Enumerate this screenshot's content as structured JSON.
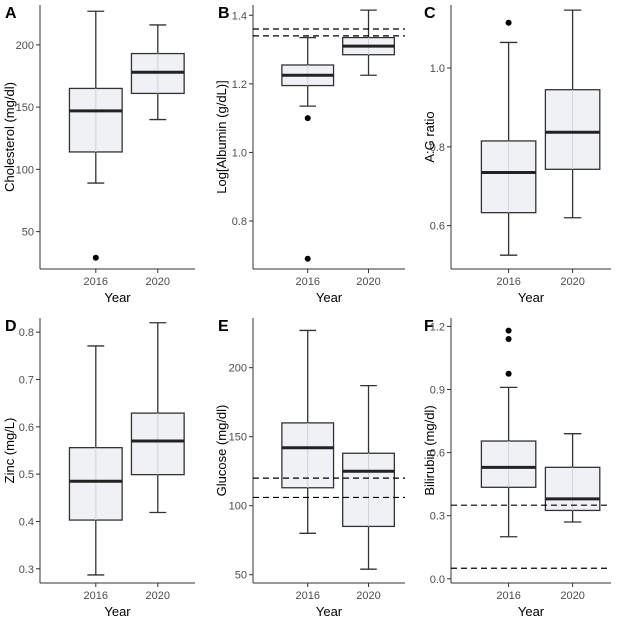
{
  "chart_data": [
    {
      "panel": "A",
      "type": "box",
      "xlabel": "Year",
      "ylabel": "Cholesterol (mg/dl)",
      "ylim": [
        20,
        232
      ],
      "yticks": [
        50,
        100,
        150,
        200
      ],
      "categories": [
        "2016",
        "2020"
      ],
      "boxes": [
        {
          "q1": 114,
          "median": 147,
          "q3": 165,
          "whisker_low": 89,
          "whisker_high": 227,
          "outliers": [
            29
          ]
        },
        {
          "q1": 161,
          "median": 178,
          "q3": 193,
          "whisker_low": 140,
          "whisker_high": 216,
          "outliers": []
        }
      ],
      "reference_lines": []
    },
    {
      "panel": "B",
      "type": "box",
      "xlabel": "Year",
      "ylabel": "Log[Albumin (g/dL)]",
      "ylim": [
        0.66,
        1.43
      ],
      "yticks": [
        0.8,
        1.0,
        1.2,
        1.4
      ],
      "categories": [
        "2016",
        "2020"
      ],
      "boxes": [
        {
          "q1": 1.195,
          "median": 1.225,
          "q3": 1.255,
          "whisker_low": 1.135,
          "whisker_high": 1.335,
          "outliers": [
            1.1,
            0.69
          ]
        },
        {
          "q1": 1.285,
          "median": 1.31,
          "q3": 1.335,
          "whisker_low": 1.225,
          "whisker_high": 1.415,
          "outliers": []
        }
      ],
      "reference_lines": [
        1.34,
        1.36
      ]
    },
    {
      "panel": "C",
      "type": "box",
      "xlabel": "Year",
      "ylabel": "A:G ratio",
      "ylim": [
        0.49,
        1.16
      ],
      "yticks": [
        0.6,
        0.8,
        1.0
      ],
      "categories": [
        "2016",
        "2020"
      ],
      "boxes": [
        {
          "q1": 0.633,
          "median": 0.735,
          "q3": 0.815,
          "whisker_low": 0.525,
          "whisker_high": 1.065,
          "outliers": [
            1.115
          ]
        },
        {
          "q1": 0.743,
          "median": 0.837,
          "q3": 0.945,
          "whisker_low": 0.62,
          "whisker_high": 1.147,
          "outliers": []
        }
      ],
      "reference_lines": []
    },
    {
      "panel": "D",
      "type": "box",
      "xlabel": "Year",
      "ylabel": "Zinc (mg/L)",
      "ylim": [
        0.27,
        0.83
      ],
      "yticks": [
        0.3,
        0.4,
        0.5,
        0.6,
        0.7,
        0.8
      ],
      "categories": [
        "2016",
        "2020"
      ],
      "boxes": [
        {
          "q1": 0.403,
          "median": 0.485,
          "q3": 0.556,
          "whisker_low": 0.287,
          "whisker_high": 0.771,
          "outliers": []
        },
        {
          "q1": 0.499,
          "median": 0.57,
          "q3": 0.629,
          "whisker_low": 0.419,
          "whisker_high": 0.82,
          "outliers": []
        }
      ],
      "reference_lines": []
    },
    {
      "panel": "E",
      "type": "box",
      "xlabel": "Year",
      "ylabel": "Glucose (mg/dl)",
      "ylim": [
        44,
        236
      ],
      "yticks": [
        50,
        100,
        150,
        200
      ],
      "categories": [
        "2016",
        "2020"
      ],
      "boxes": [
        {
          "q1": 113,
          "median": 142,
          "q3": 160,
          "whisker_low": 80,
          "whisker_high": 227,
          "outliers": []
        },
        {
          "q1": 85,
          "median": 125,
          "q3": 138,
          "whisker_low": 54,
          "whisker_high": 187,
          "outliers": []
        }
      ],
      "reference_lines": [
        106,
        120
      ]
    },
    {
      "panel": "F",
      "type": "box",
      "xlabel": "Year",
      "ylabel": "Bilirubin (mg/dl)",
      "ylim": [
        -0.02,
        1.24
      ],
      "yticks": [
        0.0,
        0.3,
        0.6,
        0.9,
        1.2
      ],
      "categories": [
        "2016",
        "2020"
      ],
      "boxes": [
        {
          "q1": 0.435,
          "median": 0.53,
          "q3": 0.655,
          "whisker_low": 0.2,
          "whisker_high": 0.91,
          "outliers": [
            0.975,
            1.14,
            1.18
          ]
        },
        {
          "q1": 0.325,
          "median": 0.38,
          "q3": 0.53,
          "whisker_low": 0.27,
          "whisker_high": 0.69,
          "outliers": []
        }
      ],
      "reference_lines": [
        0.05,
        0.35
      ]
    }
  ]
}
